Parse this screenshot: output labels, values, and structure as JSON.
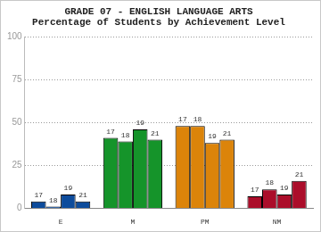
{
  "chart_data": {
    "type": "bar",
    "title": "GRADE 07 - ENGLISH LANGUAGE ARTS",
    "subtitle": "Percentage of Students by Achievement Level",
    "categories": [
      "E",
      "M",
      "PM",
      "NM"
    ],
    "series": [
      {
        "name": "17",
        "colors": [
          "#0d4c9c",
          "#15942a",
          "#dc840a",
          "#ab0d2a"
        ],
        "values": [
          4,
          41,
          48,
          7
        ]
      },
      {
        "name": "18",
        "colors": [
          "#0d4c9c",
          "#15942a",
          "#dc840a",
          "#ab0d2a"
        ],
        "values": [
          1,
          39,
          48,
          11
        ]
      },
      {
        "name": "19",
        "colors": [
          "#0d4c9c",
          "#15942a",
          "#dc840a",
          "#ab0d2a"
        ],
        "values": [
          8,
          46,
          38,
          8
        ]
      },
      {
        "name": "21",
        "colors": [
          "#0d4c9c",
          "#15942a",
          "#dc840a",
          "#ab0d2a"
        ],
        "values": [
          4,
          40,
          40,
          16
        ]
      }
    ],
    "ylim": [
      0,
      100
    ],
    "yticks": [
      0,
      25,
      50,
      75,
      100
    ],
    "grid": true
  }
}
